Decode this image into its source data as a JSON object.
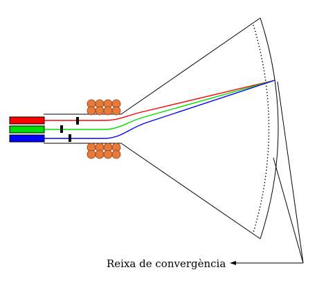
{
  "diagram": {
    "label": "Reixa de convergència",
    "colors": {
      "red": "#ff0000",
      "green": "#00dd00",
      "blue": "#0000ff",
      "coil": "#e87a3c",
      "coil_outline": "#8a3a10",
      "line": "#000000"
    },
    "guns": [
      {
        "name": "red-gun",
        "color": "red"
      },
      {
        "name": "green-gun",
        "color": "green"
      },
      {
        "name": "blue-gun",
        "color": "blue"
      }
    ]
  }
}
